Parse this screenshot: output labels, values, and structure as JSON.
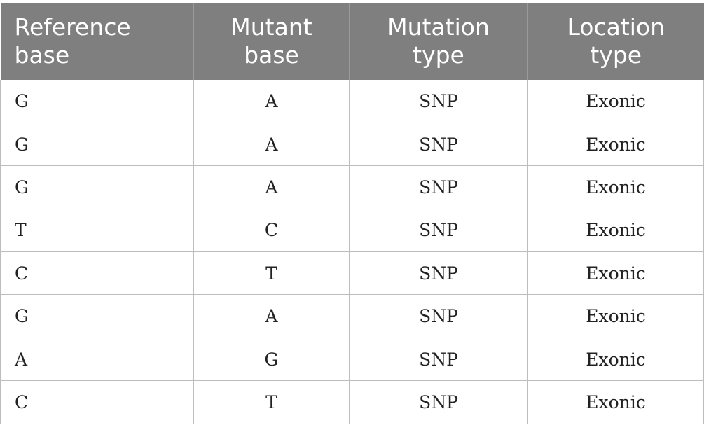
{
  "table": {
    "headers": [
      "Reference base",
      "Mutant base",
      "Mutation type",
      "Location type"
    ],
    "rows": [
      [
        "G",
        "A",
        "SNP",
        "Exonic"
      ],
      [
        "G",
        "A",
        "SNP",
        "Exonic"
      ],
      [
        "G",
        "A",
        "SNP",
        "Exonic"
      ],
      [
        "T",
        "C",
        "SNP",
        "Exonic"
      ],
      [
        "C",
        "T",
        "SNP",
        "Exonic"
      ],
      [
        "G",
        "A",
        "SNP",
        "Exonic"
      ],
      [
        "A",
        "G",
        "SNP",
        "Exonic"
      ],
      [
        "C",
        "T",
        "SNP",
        "Exonic"
      ]
    ]
  },
  "colors": {
    "header_background": "#7f7f7f",
    "header_text": "#ffffff",
    "grid_line": "#bdbdbd"
  }
}
